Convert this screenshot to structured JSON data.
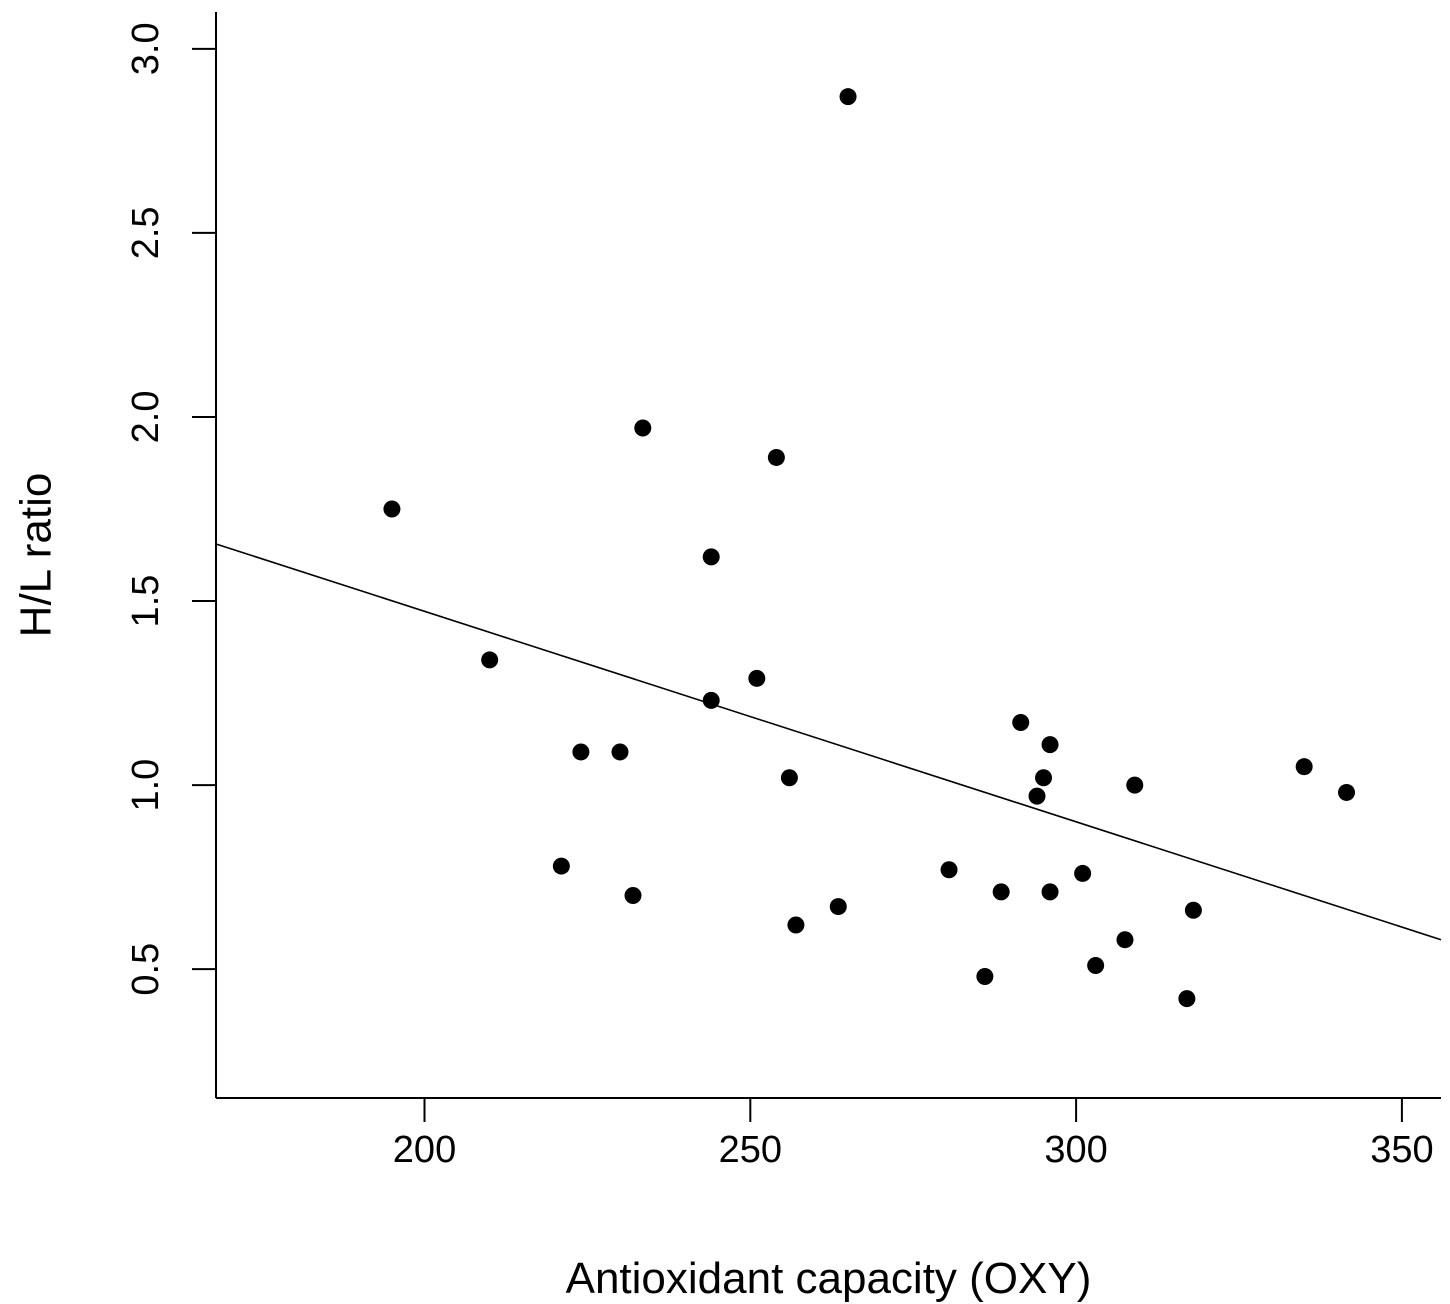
{
  "chart_data": {
    "type": "scatter",
    "title": "",
    "xlabel": "Antioxidant capacity (OXY)",
    "ylabel": "H/L ratio",
    "xlim": [
      168,
      356
    ],
    "ylim": [
      0.15,
      3.1
    ],
    "x_ticks": [
      {
        "value": 200,
        "label": "200"
      },
      {
        "value": 250,
        "label": "250"
      },
      {
        "value": 300,
        "label": "300"
      },
      {
        "value": 350,
        "label": "350"
      }
    ],
    "y_ticks": [
      {
        "value": 0.5,
        "label": "0.5"
      },
      {
        "value": 1.0,
        "label": "1.0"
      },
      {
        "value": 1.5,
        "label": "1.5"
      },
      {
        "value": 2.0,
        "label": "2.0"
      },
      {
        "value": 2.5,
        "label": "2.5"
      },
      {
        "value": 3.0,
        "label": "3.0"
      }
    ],
    "grid": false,
    "legend": "none",
    "points": [
      {
        "x": 195,
        "y": 1.75
      },
      {
        "x": 210,
        "y": 1.34
      },
      {
        "x": 221,
        "y": 0.78
      },
      {
        "x": 224,
        "y": 1.09
      },
      {
        "x": 230,
        "y": 1.09
      },
      {
        "x": 232,
        "y": 0.7
      },
      {
        "x": 233.5,
        "y": 1.97
      },
      {
        "x": 244,
        "y": 1.62
      },
      {
        "x": 244,
        "y": 1.23
      },
      {
        "x": 251,
        "y": 1.29
      },
      {
        "x": 254,
        "y": 1.89
      },
      {
        "x": 256,
        "y": 1.02
      },
      {
        "x": 257,
        "y": 0.62
      },
      {
        "x": 263.5,
        "y": 0.67
      },
      {
        "x": 265,
        "y": 2.87
      },
      {
        "x": 280.5,
        "y": 0.77
      },
      {
        "x": 286,
        "y": 0.48
      },
      {
        "x": 288.5,
        "y": 0.71
      },
      {
        "x": 291.5,
        "y": 1.17
      },
      {
        "x": 294,
        "y": 0.97
      },
      {
        "x": 295,
        "y": 1.02
      },
      {
        "x": 296,
        "y": 1.11
      },
      {
        "x": 296,
        "y": 0.71
      },
      {
        "x": 301,
        "y": 0.76
      },
      {
        "x": 303,
        "y": 0.51
      },
      {
        "x": 307.5,
        "y": 0.58
      },
      {
        "x": 309,
        "y": 1.0
      },
      {
        "x": 317,
        "y": 0.42
      },
      {
        "x": 318,
        "y": 0.66
      },
      {
        "x": 335,
        "y": 1.05
      },
      {
        "x": 341.5,
        "y": 0.98
      }
    ],
    "fit_line": {
      "x": [
        168,
        356
      ],
      "y": [
        1.655,
        0.58
      ]
    },
    "colors": {
      "points": "#000000",
      "line": "#000000",
      "axes": "#000000"
    }
  }
}
